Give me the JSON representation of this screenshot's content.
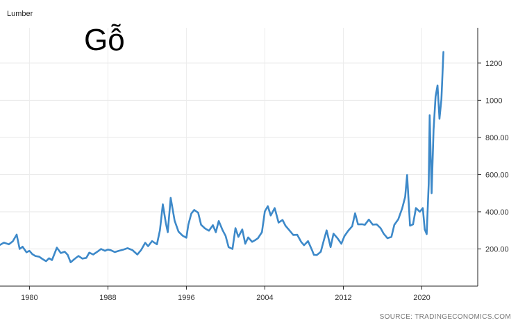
{
  "chart_data": {
    "type": "line",
    "title": "Lumber",
    "annotation": "Gỗ",
    "source": "SOURCE: TRADINGECONOMICS.COM",
    "xlim": [
      1977.0,
      2025.7
    ],
    "ylim": [
      0,
      1390
    ],
    "x_ticks": [
      {
        "value": 1980,
        "label": "1980"
      },
      {
        "value": 1988,
        "label": "1988"
      },
      {
        "value": 1996,
        "label": "1996"
      },
      {
        "value": 2004,
        "label": "2004"
      },
      {
        "value": 2012,
        "label": "2012"
      },
      {
        "value": 2020,
        "label": "2020"
      }
    ],
    "y_ticks": [
      {
        "value": 200,
        "label": "200.00"
      },
      {
        "value": 400,
        "label": "400.00"
      },
      {
        "value": 600,
        "label": "600.00"
      },
      {
        "value": 800,
        "label": "800.00"
      },
      {
        "value": 1000,
        "label": "1000"
      },
      {
        "value": 1200,
        "label": "1200"
      }
    ],
    "grid": true,
    "y_axis_side": "right",
    "color": "#3d89c9",
    "series": [
      {
        "x": [
          1977.0,
          1977.4,
          1977.9,
          1978.3,
          1978.7,
          1979.0,
          1979.3,
          1979.7,
          1980.0,
          1980.3,
          1980.6,
          1981.0,
          1981.3,
          1981.7,
          1982.0,
          1982.3,
          1982.8,
          1983.2,
          1983.6,
          1983.9,
          1984.2,
          1984.6,
          1985.0,
          1985.4,
          1985.8,
          1986.1,
          1986.5,
          1987.0,
          1987.3,
          1987.7,
          1988.0,
          1988.3,
          1988.7,
          1989.1,
          1989.5,
          1990.0,
          1990.5,
          1991.0,
          1991.4,
          1991.8,
          1992.1,
          1992.5,
          1993.0,
          1993.3,
          1993.6,
          1993.9,
          1994.1,
          1994.4,
          1994.8,
          1995.2,
          1995.6,
          1996.0,
          1996.2,
          1996.5,
          1996.8,
          1997.2,
          1997.5,
          1997.9,
          1998.3,
          1998.7,
          1999.0,
          1999.3,
          1999.7,
          2000.0,
          2000.3,
          2000.7,
          2001.0,
          2001.3,
          2001.7,
          2002.0,
          2002.3,
          2002.7,
          2003.0,
          2003.3,
          2003.7,
          2004.0,
          2004.3,
          2004.6,
          2005.0,
          2005.4,
          2005.8,
          2006.1,
          2006.5,
          2006.9,
          2007.3,
          2007.7,
          2008.0,
          2008.4,
          2008.8,
          2009.0,
          2009.3,
          2009.7,
          2010.0,
          2010.3,
          2010.7,
          2011.0,
          2011.4,
          2011.8,
          2012.1,
          2012.5,
          2012.9,
          2013.2,
          2013.5,
          2013.9,
          2014.2,
          2014.6,
          2015.0,
          2015.4,
          2015.8,
          2016.1,
          2016.5,
          2016.9,
          2017.2,
          2017.6,
          2018.0,
          2018.3,
          2018.5,
          2018.8,
          2019.1,
          2019.4,
          2019.8,
          2020.1,
          2020.3,
          2020.5,
          2020.7,
          2020.8,
          2021.0,
          2021.2,
          2021.4,
          2021.6,
          2021.8,
          2022.0,
          2022.2
        ],
        "y": [
          222,
          234,
          225,
          241,
          277,
          200,
          212,
          182,
          190,
          172,
          162,
          158,
          147,
          134,
          150,
          140,
          207,
          178,
          185,
          168,
          128,
          146,
          162,
          148,
          152,
          180,
          170,
          188,
          200,
          190,
          197,
          193,
          183,
          190,
          195,
          204,
          194,
          170,
          195,
          233,
          215,
          242,
          225,
          300,
          440,
          340,
          290,
          475,
          352,
          293,
          272,
          260,
          330,
          390,
          410,
          395,
          330,
          310,
          298,
          328,
          290,
          350,
          300,
          270,
          210,
          200,
          312,
          265,
          305,
          228,
          262,
          238,
          247,
          258,
          290,
          402,
          430,
          380,
          420,
          342,
          356,
          325,
          300,
          275,
          276,
          238,
          220,
          242,
          195,
          168,
          167,
          185,
          244,
          300,
          210,
          282,
          258,
          228,
          268,
          298,
          322,
          392,
          332,
          333,
          330,
          358,
          331,
          332,
          312,
          283,
          258,
          265,
          330,
          360,
          418,
          480,
          598,
          325,
          332,
          420,
          400,
          420,
          305,
          280,
          550,
          920,
          500,
          840,
          1020,
          1080,
          900,
          1005,
          1260
        ]
      }
    ]
  }
}
